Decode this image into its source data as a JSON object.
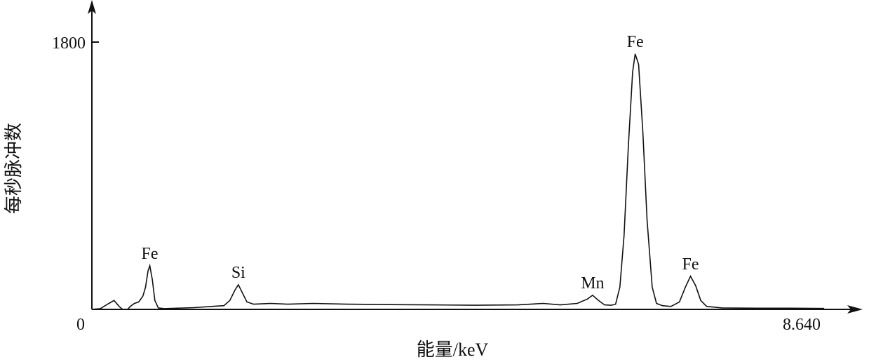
{
  "chart_data": {
    "type": "line",
    "title": "",
    "xlabel": "能量/keV",
    "ylabel": "每秒脉冲数",
    "xlim": [
      0,
      8.64
    ],
    "ylim": [
      0,
      1800
    ],
    "x_tick_labels": [
      "0",
      "8.640"
    ],
    "y_tick_labels": [
      "1800"
    ],
    "x_ticks": [
      0,
      8.64
    ],
    "y_ticks": [
      1800
    ],
    "grid": false,
    "line_color": "#111111",
    "series": [
      {
        "x": [
          0.0,
          0.1,
          0.2,
          0.26,
          0.32,
          0.36,
          0.42,
          0.45,
          0.5,
          0.55,
          0.6,
          0.63,
          0.66,
          0.68,
          0.71,
          0.74,
          0.78,
          0.85,
          1.0,
          1.2,
          1.4,
          1.55,
          1.62,
          1.68,
          1.72,
          1.76,
          1.82,
          1.9,
          2.1,
          2.3,
          2.6,
          3.0,
          3.5,
          4.0,
          4.5,
          5.0,
          5.3,
          5.5,
          5.7,
          5.82,
          5.88,
          5.95,
          6.02,
          6.1,
          6.15,
          6.2,
          6.25,
          6.3,
          6.35,
          6.38,
          6.42,
          6.47,
          6.52,
          6.58,
          6.63,
          6.7,
          6.8,
          6.9,
          6.97,
          7.03,
          7.09,
          7.15,
          7.22,
          7.4,
          7.8,
          8.2,
          8.6
        ],
        "y": [
          0,
          5,
          40,
          60,
          20,
          0,
          0,
          20,
          40,
          50,
          90,
          150,
          260,
          294,
          200,
          60,
          10,
          5,
          8,
          12,
          20,
          25,
          60,
          130,
          166,
          120,
          50,
          35,
          40,
          35,
          40,
          35,
          32,
          30,
          28,
          30,
          40,
          30,
          40,
          70,
          95,
          60,
          30,
          28,
          35,
          150,
          500,
          1100,
          1600,
          1720,
          1650,
          1200,
          600,
          150,
          40,
          25,
          20,
          50,
          150,
          223,
          160,
          60,
          20,
          10,
          8,
          8,
          6
        ]
      }
    ],
    "annotations": [
      {
        "text": "Fe",
        "x": 0.68,
        "y": 294
      },
      {
        "text": "Si",
        "x": 1.72,
        "y": 166
      },
      {
        "text": "Mn",
        "x": 5.88,
        "y": 95
      },
      {
        "text": "Fe",
        "x": 6.38,
        "y": 1720
      },
      {
        "text": "Fe",
        "x": 7.03,
        "y": 223
      }
    ]
  }
}
